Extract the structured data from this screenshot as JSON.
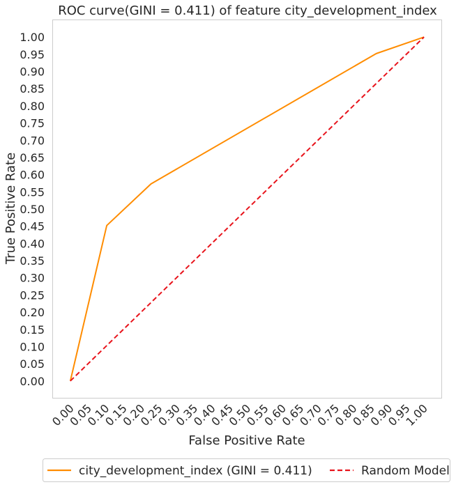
{
  "chart_data": {
    "type": "line",
    "title": "ROC curve(GINI = 0.411) of feature city_development_index",
    "xlabel": "False Positive Rate",
    "ylabel": "True Positive Rate",
    "xlim": [
      -0.05,
      1.05
    ],
    "ylim": [
      -0.05,
      1.05
    ],
    "grid": false,
    "legend_position": "bottom-center",
    "x_ticks": [
      "0.00",
      "0.05",
      "0.10",
      "0.15",
      "0.20",
      "0.25",
      "0.30",
      "0.35",
      "0.40",
      "0.45",
      "0.50",
      "0.55",
      "0.60",
      "0.65",
      "0.70",
      "0.75",
      "0.80",
      "0.85",
      "0.90",
      "0.95",
      "1.00"
    ],
    "y_ticks": [
      "0.00",
      "0.05",
      "0.10",
      "0.15",
      "0.20",
      "0.25",
      "0.30",
      "0.35",
      "0.40",
      "0.45",
      "0.50",
      "0.55",
      "0.60",
      "0.65",
      "0.70",
      "0.75",
      "0.80",
      "0.85",
      "0.90",
      "0.95",
      "1.00"
    ],
    "series": [
      {
        "name": "city_development_index (GINI = 0.411)",
        "color": "#ff8c00",
        "style": "solid",
        "x": [
          0.0,
          0.103,
          0.228,
          0.865,
          1.0
        ],
        "y": [
          0.0,
          0.452,
          0.573,
          0.952,
          1.0
        ]
      },
      {
        "name": "Random Model",
        "color": "#e8131b",
        "style": "dashed",
        "x": [
          0.0,
          1.0
        ],
        "y": [
          0.0,
          1.0
        ]
      }
    ]
  }
}
